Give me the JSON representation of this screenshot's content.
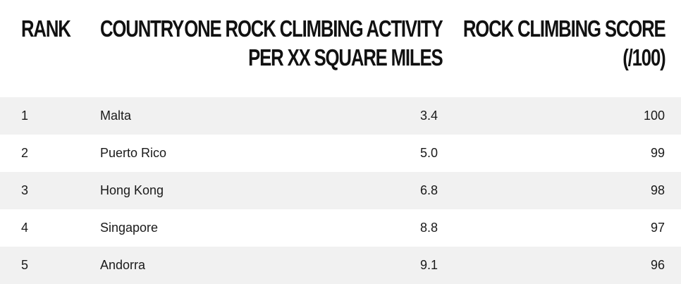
{
  "table": {
    "headers": {
      "rank": "RANK",
      "country": "COUNTRY",
      "activity_line1": "ONE ROCK CLIMBING ACTIVITY",
      "activity_line2": "PER XX SQUARE MILES",
      "score_line1": "ROCK CLIMBING SCORE",
      "score_line2": "(/100)"
    },
    "rows": [
      {
        "rank": "1",
        "country": "Malta",
        "activity": "3.4",
        "score": "100"
      },
      {
        "rank": "2",
        "country": "Puerto Rico",
        "activity": "5.0",
        "score": "99"
      },
      {
        "rank": "3",
        "country": "Hong Kong",
        "activity": "6.8",
        "score": "98"
      },
      {
        "rank": "4",
        "country": "Singapore",
        "activity": "8.8",
        "score": "97"
      },
      {
        "rank": "5",
        "country": "Andorra",
        "activity": "9.1",
        "score": "96"
      }
    ]
  },
  "colors": {
    "header_text": "#111111",
    "shaded_row": "#f1f1f1",
    "plain_row": "#ffffff",
    "body_text": "#1a1a1a"
  }
}
